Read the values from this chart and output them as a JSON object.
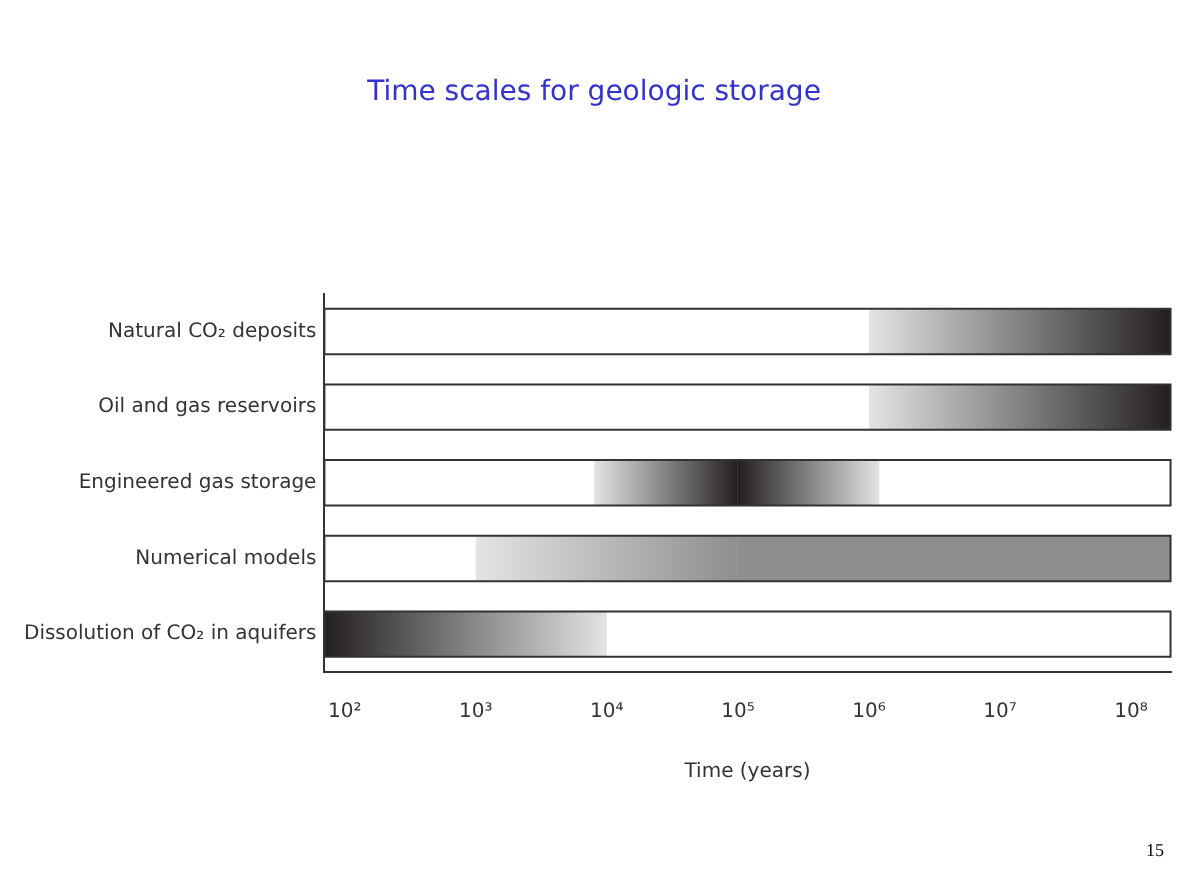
{
  "chart_data": {
    "type": "bar",
    "orientation": "horizontal",
    "title": "Time scales for geologic storage",
    "xlabel": "Time (years)",
    "categories": [
      "Natural CO₂ deposits",
      "Oil and gas reservoirs",
      "Engineered gas storage",
      "Numerical models",
      "Dissolution of CO₂ in aquifers"
    ],
    "series": [
      {
        "colors": [
          "#231f20",
          "#231f20",
          "#231f20",
          "#8e8e8e",
          null
        ],
        "base": [
          1000000,
          1000000,
          8000,
          1000,
          null
        ],
        "values": [
          199000000,
          199000000,
          92000,
          99000,
          null
        ]
      },
      {
        "colors": [
          null,
          null,
          "#231f20",
          null,
          "#231f20"
        ],
        "base": [
          null,
          null,
          100000,
          null,
          70
        ],
        "values": [
          null,
          null,
          1100000,
          null,
          9930
        ]
      },
      {
        "colors": [
          null,
          null,
          null,
          "#8e8e8e",
          null
        ],
        "base": [
          null,
          null,
          null,
          100000,
          null
        ],
        "values": [
          null,
          null,
          null,
          199900000,
          null
        ]
      }
    ],
    "log": "x",
    "xlim": [
      70,
      200000000
    ],
    "xticks": [
      {
        "value": 100,
        "label": "10²"
      },
      {
        "value": 1000,
        "label": "10³"
      },
      {
        "value": 10000,
        "label": "10⁴"
      },
      {
        "value": 100000,
        "label": "10⁵"
      },
      {
        "value": 1000000,
        "label": "10⁶"
      },
      {
        "value": 10000000,
        "label": "10⁷"
      },
      {
        "value": 100000000,
        "label": "10⁸"
      }
    ],
    "grid": false,
    "legend": false,
    "annotations": [
      "15"
    ]
  }
}
